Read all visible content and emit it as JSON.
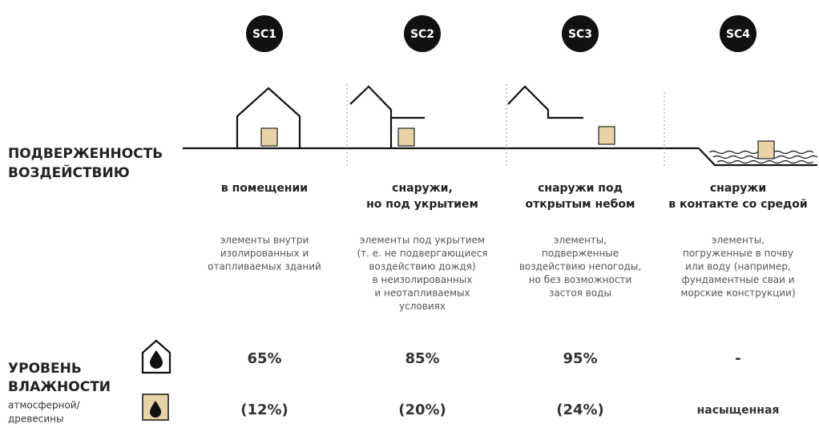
{
  "row_labels": {
    "exposure": [
      "ПОДВЕРЖЕННОСТЬ",
      "ВОЗДЕЙСТВИЮ"
    ],
    "humidity": [
      "УРОВЕНЬ",
      "ВЛАЖНОСТИ"
    ],
    "humidity_sub": [
      "атмосферной/",
      "древесины"
    ]
  },
  "columns": [
    {
      "badge": "SC1",
      "title": [
        "в помещении"
      ],
      "description": [
        "элементы внутри",
        "изолированных и",
        "отапливаемых зданий"
      ],
      "air_humidity": "65%",
      "wood_humidity": "(12%)"
    },
    {
      "badge": "SC2",
      "title": [
        "снаружи,",
        "но под укрытием"
      ],
      "description": [
        "элементы под укрытием",
        "(т. е. не подвергающиеся",
        "воздействию дождя)",
        "в неизолированных",
        "и неотапливаемых",
        "условиях"
      ],
      "air_humidity": "85%",
      "wood_humidity": "(20%)"
    },
    {
      "badge": "SC3",
      "title": [
        "снаружи под",
        "открытым небом"
      ],
      "description": [
        "элементы,",
        "подверженные",
        "воздействию непогоды,",
        "но без возможности",
        "застоя воды"
      ],
      "air_humidity": "95%",
      "wood_humidity": "(24%)"
    },
    {
      "badge": "SC4",
      "title": [
        "снаружи",
        "в контакте со средой"
      ],
      "description": [
        "элементы,",
        "погруженные в почву",
        "или воду (например,",
        "фундаментные сваи и",
        "морские конструкции)"
      ],
      "air_humidity": "-",
      "wood_humidity": "насыщенная"
    }
  ]
}
